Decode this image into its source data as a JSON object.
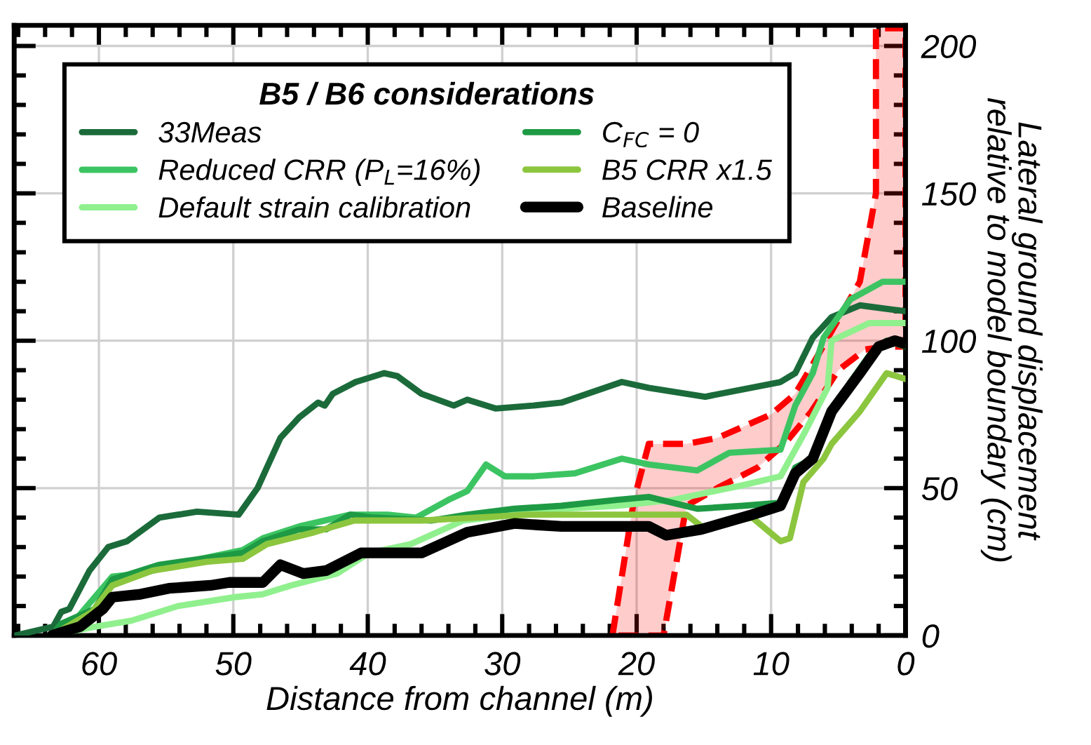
{
  "chart_data": {
    "type": "line",
    "xlabel": "Distance from channel (m)",
    "ylabel": "Lateral ground displacement\nrelative to model boundary (cm)",
    "legend_title": "B5 / B6 considerations",
    "xlim": [
      66.3,
      0
    ],
    "xticks": [
      60,
      50,
      40,
      30,
      20,
      10,
      0
    ],
    "ylim": [
      0,
      207
    ],
    "yticks": [
      0,
      50,
      100,
      150,
      200
    ],
    "grid": true,
    "legend": "top left",
    "tick_labels": "xy2",
    "series": [
      {
        "type": "area",
        "line_style": "dashed",
        "color": "#ff0000",
        "x": [
          21.8,
          20.2,
          19.1,
          16.3,
          14,
          10,
          8.2,
          6.9,
          3.4,
          2.2,
          2.2,
          0,
          0,
          1.5,
          3,
          5,
          7,
          9,
          11,
          14,
          16.3,
          18
        ],
        "values": [
          0,
          46,
          65,
          65,
          67,
          75,
          82,
          92,
          120,
          150,
          206,
          206,
          98,
          98,
          97,
          90,
          76,
          65,
          57,
          50,
          44,
          0
        ]
      },
      {
        "name": "33Meas",
        "color": "#1b6b3a",
        "x": [
          66.2,
          63.4,
          62.8,
          62.2,
          60.7,
          59.3,
          57.9,
          55.5,
          52.7,
          49.6,
          48.2,
          46.5,
          45.1,
          43.7,
          43.2,
          42.6,
          40.9,
          38.8,
          37.8,
          36,
          33.6,
          32.6,
          30.5,
          27.7,
          25.6,
          21.1,
          19.1,
          14.9,
          9.3,
          8.2,
          6.9,
          5.5,
          3.4,
          0
        ],
        "values": [
          0,
          3,
          8,
          9,
          22,
          30,
          32,
          40,
          42,
          41,
          50,
          67,
          74,
          79,
          78,
          82,
          86,
          89,
          88,
          82,
          78,
          80,
          77,
          78,
          79,
          86,
          84,
          81,
          86,
          89,
          101,
          108,
          112,
          110
        ]
      },
      {
        "name": "Reduced CRR (P$_{L}$=16%)",
        "color": "#3cc462",
        "x": [
          63.5,
          61.8,
          59,
          56.9,
          52.4,
          49.3,
          47.8,
          45.1,
          41.3,
          38.5,
          36.4,
          34,
          32.6,
          31.2,
          29.8,
          27.7,
          24.6,
          21.1,
          19.1,
          15.5,
          13.1,
          9.3,
          8.2,
          6.9,
          6.1,
          4.1,
          1.7,
          0
        ],
        "values": [
          0,
          5,
          20,
          21,
          26,
          29,
          33,
          37,
          41,
          41,
          40,
          46,
          49,
          58,
          54,
          54,
          55,
          60,
          58,
          56,
          62,
          63,
          78,
          89,
          101,
          114,
          120,
          120
        ]
      },
      {
        "name": "Default strain calibration",
        "color": "#90f08e",
        "x": [
          63.5,
          60.3,
          57.6,
          54.1,
          49.9,
          47.8,
          45.7,
          42.3,
          39.9,
          36.8,
          32.9,
          29.1,
          25.6,
          21.5,
          17.3,
          12.1,
          9.3,
          7.6,
          5.8,
          5.5,
          2.7,
          0
        ],
        "values": [
          0,
          3,
          5,
          10,
          13,
          14,
          17,
          21,
          28,
          31,
          39,
          41,
          43,
          44,
          46,
          51,
          54,
          68,
          84,
          100,
          106,
          106
        ]
      },
      {
        "name": "C$_{FC}$ = 0",
        "color": "#1e9a44",
        "x": [
          63.5,
          62.8,
          60.3,
          59,
          57.6,
          55.5,
          52.4,
          49.3,
          47.8,
          45.1,
          43.1,
          41.3,
          39.6,
          35.3,
          32.6,
          29.1,
          25.6,
          21.5,
          19.1,
          15.5,
          12.1,
          9.3,
          8.2,
          6.9,
          6.1,
          4.1,
          2.7,
          1.4,
          0
        ],
        "values": [
          0,
          4,
          9,
          19,
          21,
          24,
          26,
          28,
          32,
          36,
          36,
          41,
          40,
          39,
          41,
          43,
          44,
          46,
          47,
          43,
          44,
          45,
          57,
          60,
          70,
          86,
          95,
          100,
          98
        ]
      },
      {
        "name": "B5 CRR x1.5",
        "color": "#8cc63f",
        "x": [
          63.5,
          60.5,
          59,
          56,
          52,
          49.3,
          47.5,
          44,
          41,
          36,
          32,
          28,
          24,
          20,
          16.3,
          14.9,
          13.9,
          11.4,
          9.3,
          8.6,
          7.6,
          6.1,
          5.5,
          3.4,
          1.4,
          0
        ],
        "values": [
          0,
          8,
          17,
          22,
          25,
          26,
          31,
          35,
          39,
          39,
          40,
          41,
          41,
          41,
          41,
          36,
          38,
          40,
          32,
          33,
          52,
          60,
          65,
          76,
          89,
          87
        ]
      },
      {
        "name": "Baseline",
        "color": "#000000",
        "x": [
          63.5,
          61.4,
          59.7,
          59,
          56.9,
          54.8,
          51.7,
          50.3,
          47.8,
          46.5,
          44.8,
          43.1,
          40.5,
          36,
          32.6,
          29.1,
          25.6,
          19.1,
          17.8,
          15.2,
          11.4,
          9.3,
          8.2,
          6.9,
          5.5,
          3.4,
          2,
          0.8,
          0
        ],
        "values": [
          0,
          3,
          9,
          13,
          14,
          16,
          17,
          18,
          18,
          24,
          21,
          22,
          28,
          28,
          35,
          38,
          37,
          37,
          34,
          36,
          41,
          44,
          55,
          60,
          76,
          89,
          98,
          100,
          99
        ]
      }
    ]
  }
}
